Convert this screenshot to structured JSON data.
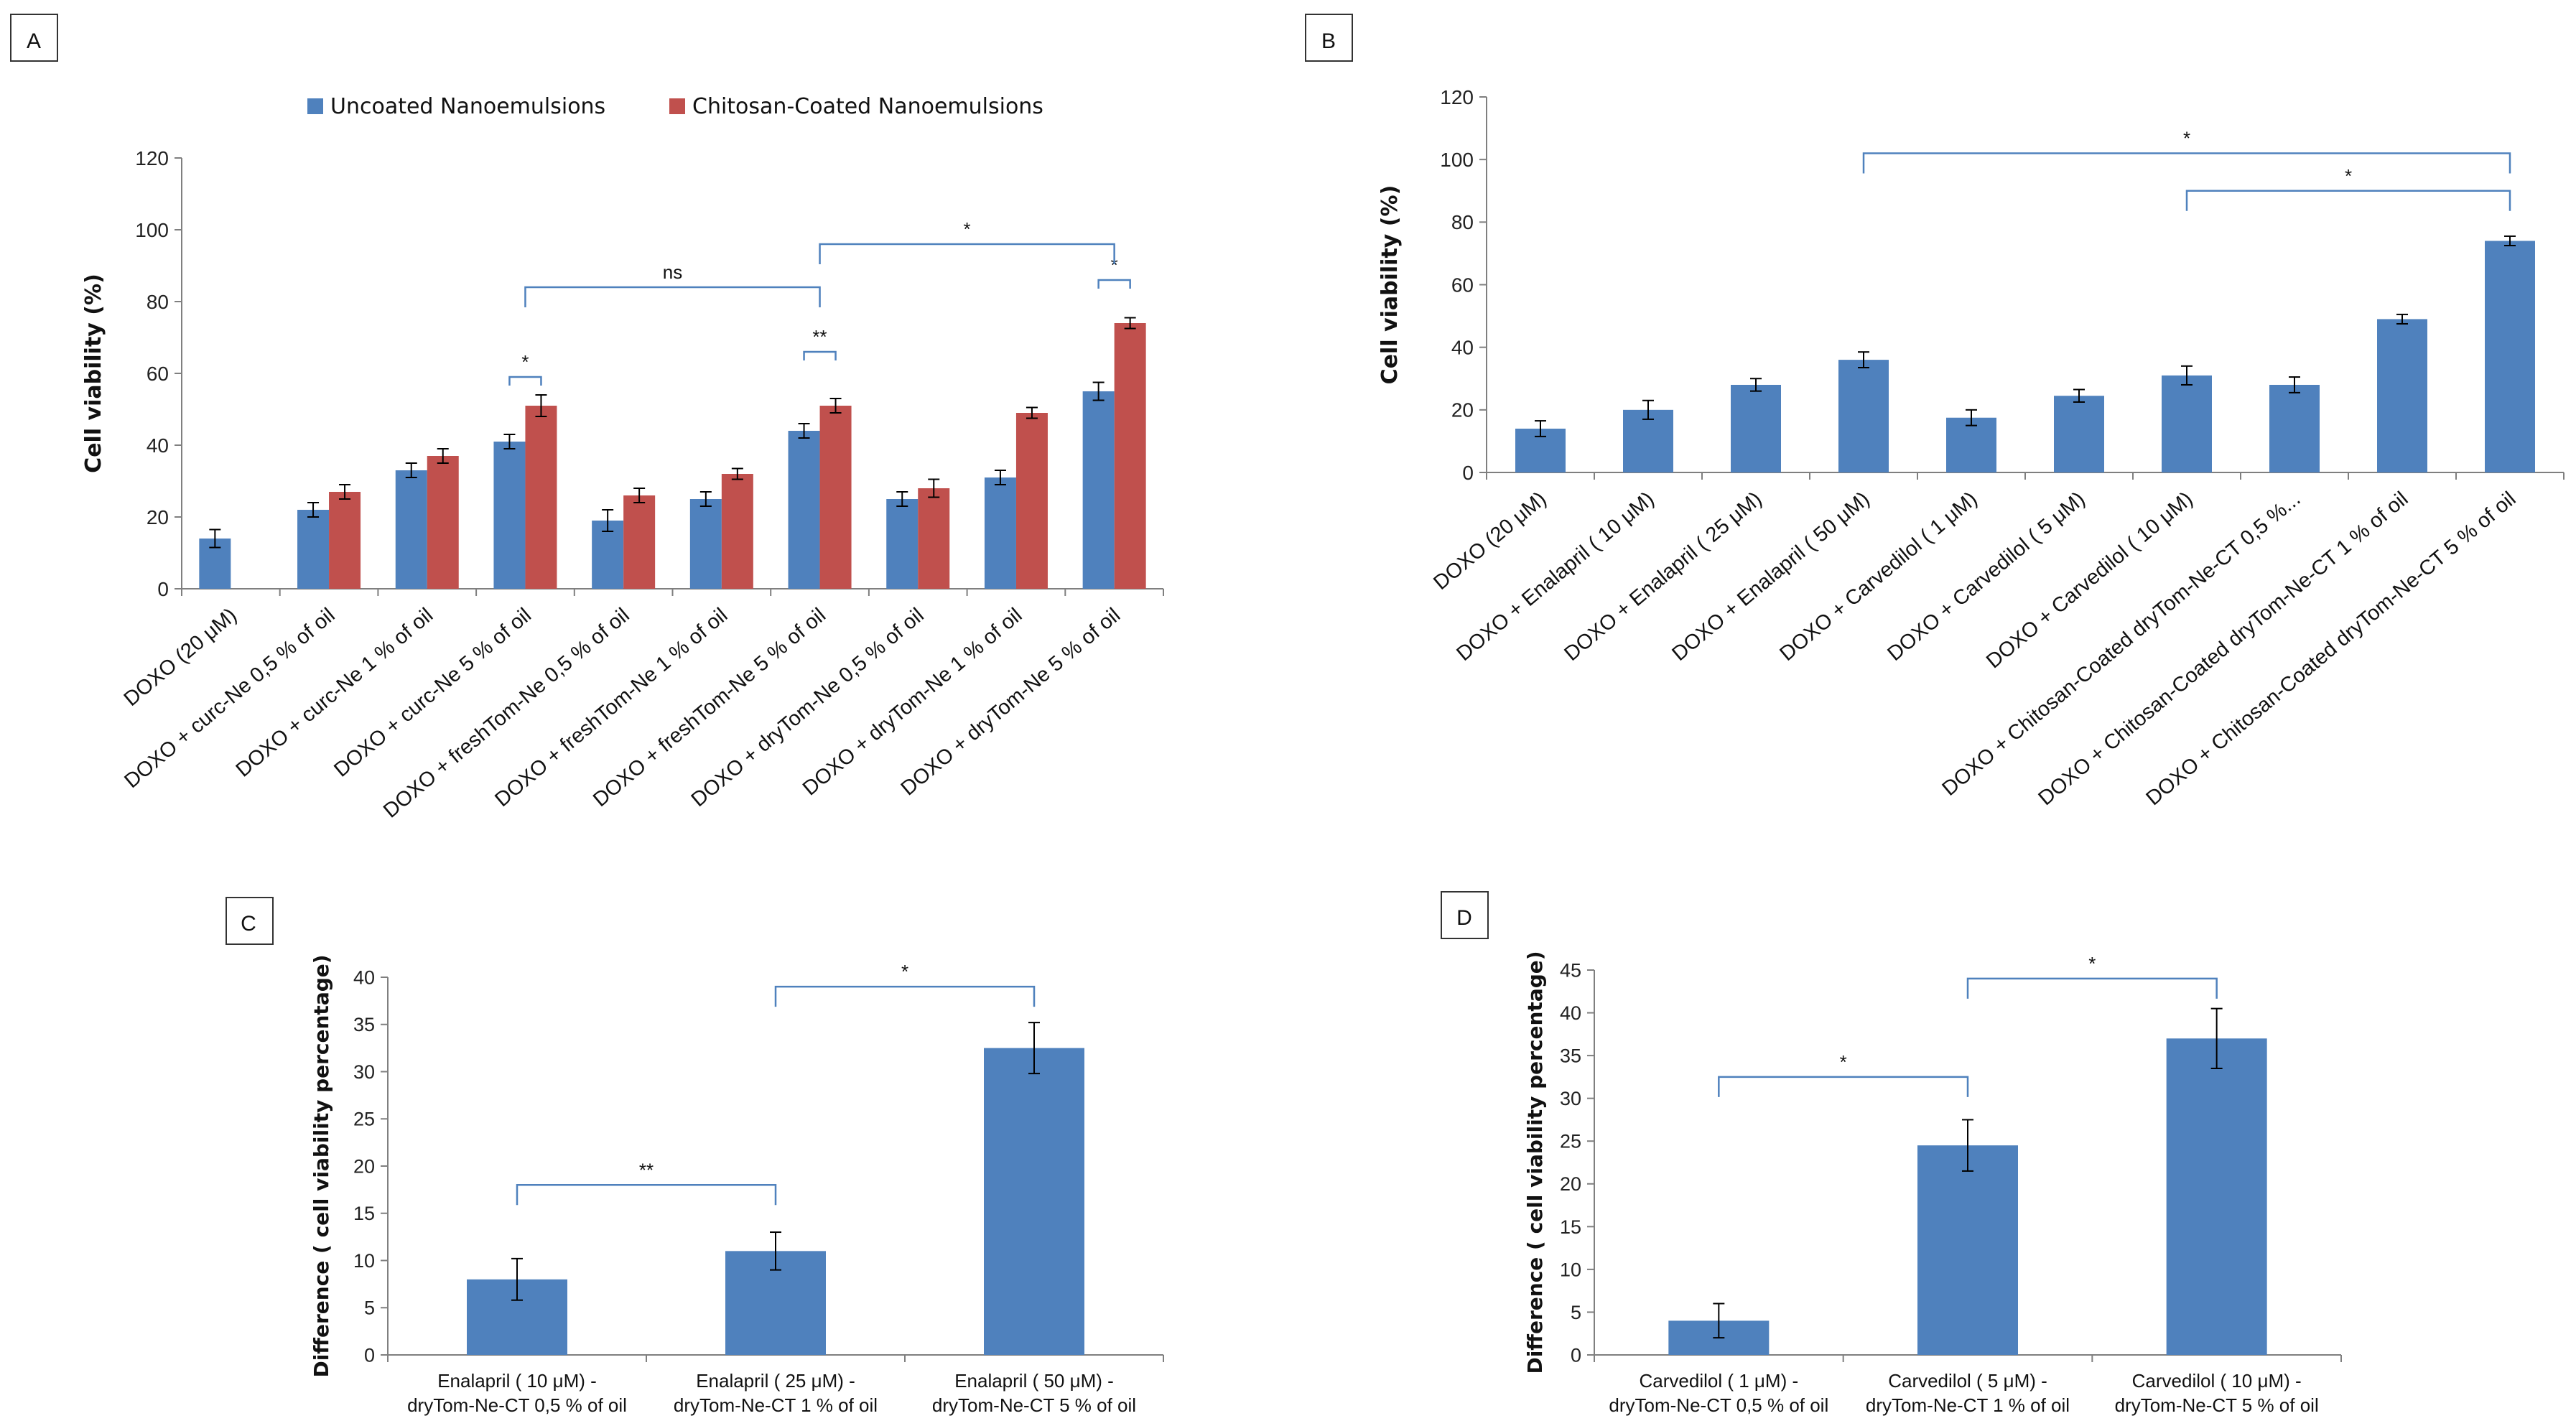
{
  "colors": {
    "blue": "#4f81bd",
    "red": "#c0504d",
    "bracket": "#4f81bd",
    "axis": "#7f7f7f"
  },
  "chart_data": [
    {
      "panel": "A",
      "type": "bar",
      "title": "",
      "xlabel": "",
      "ylabel": "Cell viability (%)",
      "ylim": [
        0,
        120
      ],
      "yticks": [
        0,
        20,
        40,
        60,
        80,
        100,
        120
      ],
      "legend_position": "top",
      "categories": [
        "DOXO (20 μM)",
        "DOXO + curc-Ne 0,5 % of oil",
        "DOXO + curc-Ne 1 % of oil",
        "DOXO + curc-Ne 5 % of oil",
        "DOXO + freshTom-Ne 0,5 % of oil",
        "DOXO + freshTom-Ne 1 % of oil",
        "DOXO + freshTom-Ne 5 % of oil",
        "DOXO + dryTom-Ne 0,5 % of oil",
        "DOXO + dryTom-Ne 1 % of oil",
        "DOXO + dryTom-Ne 5 % of oil"
      ],
      "series": [
        {
          "name": "Uncoated Nanoemulsions",
          "color": "#4f81bd",
          "values": [
            14,
            22,
            33,
            41,
            19,
            25,
            44,
            25,
            31,
            55
          ],
          "errors": [
            2.5,
            2,
            2,
            2,
            3,
            2,
            2,
            2,
            2,
            2.5
          ]
        },
        {
          "name": "Chitosan-Coated Nanoemulsions",
          "color": "#c0504d",
          "values": [
            null,
            27,
            37,
            51,
            26,
            32,
            51,
            28,
            49,
            74
          ],
          "errors": [
            null,
            2,
            2,
            3,
            2,
            1.5,
            2,
            2.5,
            1.5,
            1.5
          ]
        }
      ],
      "annotations": [
        {
          "label": "*",
          "type": "pair",
          "cat": 3,
          "y": 59
        },
        {
          "label": "**",
          "type": "pair",
          "cat": 6,
          "y": 66
        },
        {
          "label": "*",
          "type": "pair",
          "cat": 9,
          "y": 86
        },
        {
          "label": "ns",
          "type": "span",
          "from": 3,
          "to": 6,
          "y": 84
        },
        {
          "label": "*",
          "type": "span",
          "from": 6,
          "to": 9,
          "y": 96
        }
      ]
    },
    {
      "panel": "B",
      "type": "bar",
      "title": "",
      "xlabel": "",
      "ylabel": "Cell viability (%)",
      "ylim": [
        0,
        120
      ],
      "yticks": [
        0,
        20,
        40,
        60,
        80,
        100,
        120
      ],
      "categories": [
        "DOXO (20 μM)",
        "DOXO + Enalapril ( 10 μM)",
        "DOXO + Enalapril ( 25 μM)",
        "DOXO + Enalapril ( 50 μM)",
        "DOXO + Carvedilol ( 1 μM)",
        "DOXO + Carvedilol ( 5 μM)",
        "DOXO + Carvedilol ( 10 μM)",
        "DOXO + Chitosan-Coated dryTom-Ne-CT 0,5 %...",
        "DOXO + Chitosan-Coated dryTom-Ne-CT 1 % of oil",
        "DOXO + Chitosan-Coated dryTom-Ne-CT 5 % of oil"
      ],
      "series": [
        {
          "name": "",
          "color": "#4f81bd",
          "values": [
            14,
            20,
            28,
            36,
            17.5,
            24.5,
            31,
            28,
            49,
            74
          ],
          "errors": [
            2.5,
            3,
            2,
            2.5,
            2.5,
            2,
            3,
            2.5,
            1.5,
            1.5
          ]
        }
      ],
      "annotations": [
        {
          "label": "*",
          "type": "span",
          "from": 3,
          "to": 9,
          "y": 102
        },
        {
          "label": "*",
          "type": "span",
          "from": 6,
          "to": 9,
          "y": 90
        }
      ]
    },
    {
      "panel": "C",
      "type": "bar",
      "title": "",
      "xlabel": "",
      "ylabel": "Difference ( cell viability percentage)",
      "ylim": [
        0,
        40
      ],
      "yticks": [
        0,
        5,
        10,
        15,
        20,
        25,
        30,
        35,
        40
      ],
      "categories": [
        [
          "Enalapril ( 10 μM) -",
          "dryTom-Ne-CT 0,5 % of oil"
        ],
        [
          "Enalapril ( 25 μM) -",
          "dryTom-Ne-CT 1 % of oil"
        ],
        [
          "Enalapril ( 50 μM) -",
          "dryTom-Ne-CT 5 % of oil"
        ]
      ],
      "series": [
        {
          "name": "",
          "color": "#4f81bd",
          "values": [
            8,
            11,
            32.5
          ],
          "errors": [
            2.2,
            2,
            2.7
          ]
        }
      ],
      "annotations": [
        {
          "label": "**",
          "type": "span",
          "from": 0,
          "to": 1,
          "y": 18
        },
        {
          "label": "*",
          "type": "span",
          "from": 1,
          "to": 2,
          "y": 39
        }
      ]
    },
    {
      "panel": "D",
      "type": "bar",
      "title": "",
      "xlabel": "",
      "ylabel": "Difference ( cell viability percentage)",
      "ylim": [
        0,
        45
      ],
      "yticks": [
        0,
        5,
        10,
        15,
        20,
        25,
        30,
        35,
        40,
        45
      ],
      "categories": [
        [
          "Carvedilol ( 1 μM) -",
          "dryTom-Ne-CT 0,5 % of oil"
        ],
        [
          "Carvedilol ( 5 μM) -",
          "dryTom-Ne-CT 1 % of oil"
        ],
        [
          "Carvedilol ( 10  μM) -",
          "dryTom-Ne-CT 5 % of oil"
        ]
      ],
      "series": [
        {
          "name": "",
          "color": "#4f81bd",
          "values": [
            4,
            24.5,
            37
          ],
          "errors": [
            2,
            3,
            3.5
          ]
        }
      ],
      "annotations": [
        {
          "label": "*",
          "type": "span",
          "from": 0,
          "to": 1,
          "y": 32.5
        },
        {
          "label": "*",
          "type": "span",
          "from": 1,
          "to": 2,
          "y": 44
        }
      ]
    }
  ]
}
